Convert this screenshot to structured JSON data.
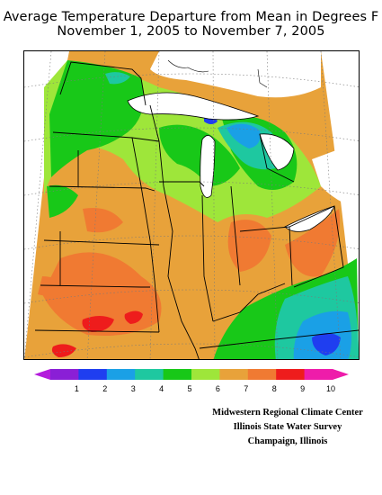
{
  "title": {
    "line1": "Average Temperature Departure from Mean in Degrees F",
    "line2": "November 1, 2005 to November 7, 2005"
  },
  "legend": {
    "ticks": [
      "1",
      "2",
      "3",
      "4",
      "5",
      "6",
      "7",
      "8",
      "9",
      "10"
    ],
    "colors": [
      "#8a1fd6",
      "#1f3ef0",
      "#1aa0e6",
      "#1ec8a0",
      "#18c818",
      "#9ee63a",
      "#e8a23a",
      "#f07a32",
      "#ee1c1c",
      "#ee1caa"
    ],
    "low_arrow_color": "#b41cdc",
    "high_arrow_color": "#ee1caa"
  },
  "map": {
    "background_color": "#e8a23a",
    "lake_color": "#ffffff",
    "grid": "dotted lat-lon graticule",
    "boundaries": "state lines and county-free outline"
  },
  "credits": {
    "line1": "Midwestern Regional Climate Center",
    "line2": "Illinois State Water Survey",
    "line3": "Champaign, Illinois"
  }
}
